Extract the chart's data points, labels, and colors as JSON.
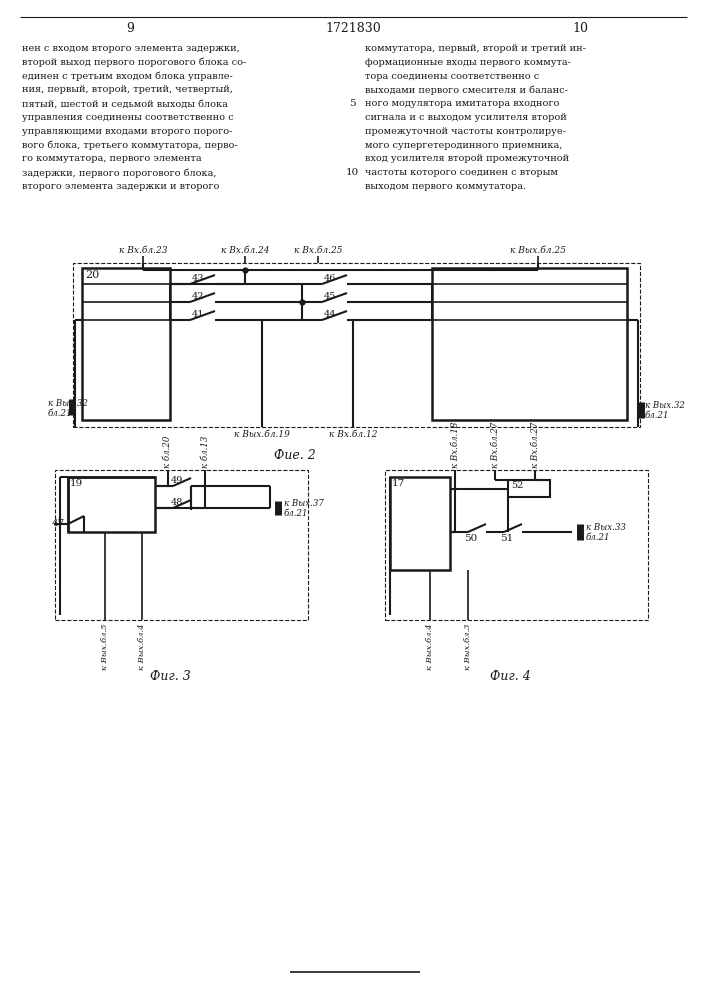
{
  "page_title": "1721830",
  "page_left": "9",
  "page_right": "10",
  "text_left": [
    "нен с входом второго элемента задержки,",
    "второй выход первого порогового блока со-",
    "единен с третьим входом блока управле-",
    "ния, первый, второй, третий, четвертый,",
    "пятый, шестой и седьмой выходы блока",
    "управления соединены соответственно с",
    "управляющими входами второго порого-",
    "вого блока, третьего коммутатора, перво-",
    "го коммутатора, первого элемента",
    "задержки, первого порогового блока,",
    "второго элемента задержки и второго"
  ],
  "text_right": [
    "коммутатора, первый, второй и третий ин-",
    "формационные входы первого коммута-",
    "тора соединены соответственно с",
    "выходами первого смесителя и баланс-",
    "ного модулятора имитатора входного",
    "сигнала и с выходом усилителя второй",
    "промежуточной частоты контролируе-",
    "мого супергетеродинного приемника,",
    "вход усилителя второй промежуточной",
    "частоты которого соединен с вторым",
    "выходом первого коммутатора."
  ],
  "line_num_5": "5",
  "line_num_10": "10",
  "fig2_label": "Фие. 2",
  "fig3_label": "Фиг. 3",
  "fig4_label": "Фиг. 4",
  "background_color": "#ffffff",
  "line_color": "#1a1a1a"
}
